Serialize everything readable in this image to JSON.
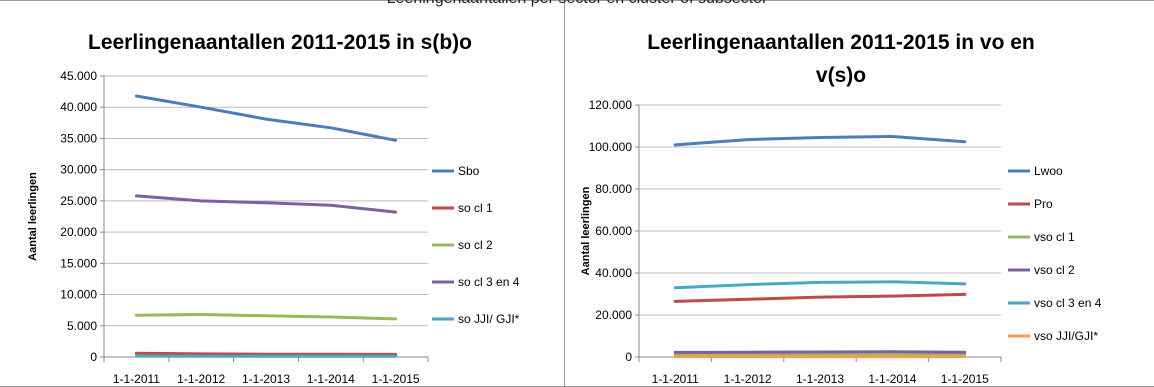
{
  "caption": "Leerlingenaantallen per sector en cluster of subsector",
  "chart_data": [
    {
      "type": "line",
      "title": "Leerlingenaantallen 2011-2015 in s(b)o",
      "xlabel": "",
      "ylabel": "Aantal leerlingen",
      "categories": [
        "1-1-2011",
        "1-1-2012",
        "1-1-2013",
        "1-1-2014",
        "1-1-2015"
      ],
      "ylim": [
        0,
        45000
      ],
      "yticks": [
        0,
        5000,
        10000,
        15000,
        20000,
        25000,
        30000,
        35000,
        40000,
        45000
      ],
      "ytick_labels": [
        "0",
        "5.000",
        "10.000",
        "15.000",
        "20.000",
        "25.000",
        "30.000",
        "35.000",
        "40.000",
        "45.000"
      ],
      "grid": true,
      "legend": "right",
      "series": [
        {
          "name": "Sbo",
          "color": "#4a7ebb",
          "values": [
            41800,
            40000,
            38100,
            36700,
            34700
          ]
        },
        {
          "name": "so cl 1",
          "color": "#be4b48",
          "values": [
            600,
            500,
            450,
            450,
            420
          ]
        },
        {
          "name": "so cl 2",
          "color": "#98b954",
          "values": [
            6700,
            6800,
            6600,
            6400,
            6100
          ]
        },
        {
          "name": "so cl 3 en 4",
          "color": "#7d60a0",
          "values": [
            25800,
            25000,
            24700,
            24300,
            23200
          ]
        },
        {
          "name": "so JJI/ GJI*",
          "color": "#46aac5",
          "values": [
            150,
            120,
            110,
            110,
            110
          ]
        }
      ]
    },
    {
      "type": "line",
      "title": "Leerlingenaantallen 2011-2015 in vo en v(s)o",
      "title_lines": [
        "Leerlingenaantallen 2011-2015 in vo en",
        "v(s)o"
      ],
      "xlabel": "",
      "ylabel": "Aantal leerlingen",
      "categories": [
        "1-1-2011",
        "1-1-2012",
        "1-1-2013",
        "1-1-2014",
        "1-1-2015"
      ],
      "ylim": [
        0,
        120000
      ],
      "yticks": [
        0,
        20000,
        40000,
        60000,
        80000,
        100000,
        120000
      ],
      "ytick_labels": [
        "0",
        "20.000",
        "40.000",
        "60.000",
        "80.000",
        "100.000",
        "120.000"
      ],
      "grid": true,
      "legend": "right",
      "series": [
        {
          "name": "Lwoo",
          "color": "#4a7ebb",
          "values": [
            101000,
            103500,
            104500,
            105000,
            102500
          ]
        },
        {
          "name": "Pro",
          "color": "#be4b48",
          "values": [
            26500,
            27500,
            28500,
            29000,
            29800
          ]
        },
        {
          "name": "vso cl 1",
          "color": "#98b954",
          "values": [
            1000,
            1000,
            1000,
            1100,
            1100
          ]
        },
        {
          "name": "vso cl 2",
          "color": "#7d60a0",
          "values": [
            2200,
            2300,
            2400,
            2500,
            2300
          ]
        },
        {
          "name": "vso cl 3 en 4",
          "color": "#46aac5",
          "values": [
            33000,
            34500,
            35500,
            35800,
            34800
          ]
        },
        {
          "name": "vso JJI/GJI*",
          "color": "#f59d56",
          "values": [
            200,
            200,
            200,
            200,
            200
          ]
        }
      ]
    }
  ]
}
